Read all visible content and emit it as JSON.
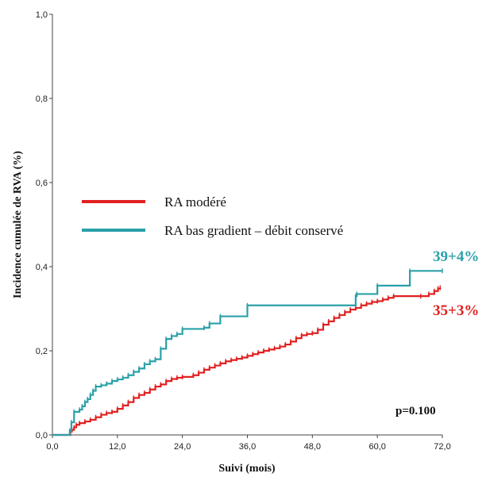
{
  "chart_data": {
    "type": "line",
    "title": "",
    "xlabel": "Suivi (mois)",
    "ylabel": "Incidence cumulée de RVA (%)",
    "xlim": [
      0,
      72
    ],
    "ylim": [
      0,
      1
    ],
    "x_ticks": [
      "0,0",
      "12,0",
      "24,0",
      "36,0",
      "48,0",
      "60,0",
      "72,0"
    ],
    "y_ticks": [
      "0,0",
      "0,2",
      "0,4",
      "0,6",
      "0,8",
      "1,0"
    ],
    "x_tick_values": [
      0,
      12,
      24,
      36,
      48,
      60,
      72
    ],
    "y_tick_values": [
      0,
      0.2,
      0.4,
      0.6,
      0.8,
      1.0
    ],
    "grid": false,
    "step": true,
    "legend_position": "center-left",
    "series": [
      {
        "name": "RA modéré",
        "color": "#e02020",
        "end_label": "35+3%",
        "points": [
          [
            0,
            0
          ],
          [
            3.2,
            0
          ],
          [
            3.3,
            0.008
          ],
          [
            3.6,
            0.012
          ],
          [
            4.0,
            0.018
          ],
          [
            4.4,
            0.024
          ],
          [
            5.0,
            0.028
          ],
          [
            6.0,
            0.032
          ],
          [
            7.0,
            0.036
          ],
          [
            8.0,
            0.042
          ],
          [
            9.0,
            0.048
          ],
          [
            10.0,
            0.052
          ],
          [
            11.0,
            0.055
          ],
          [
            12.0,
            0.062
          ],
          [
            13.0,
            0.07
          ],
          [
            14.0,
            0.078
          ],
          [
            15.0,
            0.088
          ],
          [
            16.0,
            0.095
          ],
          [
            17.0,
            0.1
          ],
          [
            18.0,
            0.108
          ],
          [
            19.0,
            0.115
          ],
          [
            20.0,
            0.12
          ],
          [
            21.0,
            0.128
          ],
          [
            22.0,
            0.133
          ],
          [
            23.0,
            0.136
          ],
          [
            24.0,
            0.138
          ],
          [
            26.0,
            0.142
          ],
          [
            27.0,
            0.148
          ],
          [
            28.0,
            0.155
          ],
          [
            29.0,
            0.16
          ],
          [
            30.0,
            0.165
          ],
          [
            31.0,
            0.17
          ],
          [
            32.0,
            0.175
          ],
          [
            33.0,
            0.178
          ],
          [
            34.0,
            0.181
          ],
          [
            35.0,
            0.184
          ],
          [
            36.0,
            0.188
          ],
          [
            37.0,
            0.192
          ],
          [
            38.0,
            0.196
          ],
          [
            39.0,
            0.2
          ],
          [
            40.0,
            0.203
          ],
          [
            41.0,
            0.206
          ],
          [
            42.0,
            0.21
          ],
          [
            43.0,
            0.215
          ],
          [
            44.0,
            0.222
          ],
          [
            45.0,
            0.23
          ],
          [
            46.0,
            0.237
          ],
          [
            47.0,
            0.24
          ],
          [
            48.0,
            0.242
          ],
          [
            49.0,
            0.25
          ],
          [
            50.0,
            0.262
          ],
          [
            51.0,
            0.27
          ],
          [
            52.0,
            0.278
          ],
          [
            53.0,
            0.285
          ],
          [
            54.0,
            0.292
          ],
          [
            55.0,
            0.298
          ],
          [
            56.0,
            0.302
          ],
          [
            57.0,
            0.308
          ],
          [
            58.0,
            0.312
          ],
          [
            59.0,
            0.316
          ],
          [
            60.0,
            0.318
          ],
          [
            61.0,
            0.322
          ],
          [
            62.0,
            0.326
          ],
          [
            63.0,
            0.33
          ],
          [
            68.0,
            0.33
          ],
          [
            69.5,
            0.335
          ],
          [
            70.5,
            0.342
          ],
          [
            71.2,
            0.348
          ],
          [
            71.6,
            0.35
          ]
        ]
      },
      {
        "name": "RA bas gradient – débit conservé",
        "color": "#2aa0a8",
        "end_label": "39+4%",
        "points": [
          [
            0,
            0
          ],
          [
            3.1,
            0
          ],
          [
            3.2,
            0.01
          ],
          [
            3.5,
            0.03
          ],
          [
            4.0,
            0.055
          ],
          [
            5.0,
            0.06
          ],
          [
            5.5,
            0.068
          ],
          [
            6.0,
            0.078
          ],
          [
            6.5,
            0.085
          ],
          [
            7.0,
            0.095
          ],
          [
            7.5,
            0.105
          ],
          [
            8.0,
            0.115
          ],
          [
            9.0,
            0.118
          ],
          [
            10.0,
            0.122
          ],
          [
            11.0,
            0.128
          ],
          [
            12.0,
            0.132
          ],
          [
            13.0,
            0.136
          ],
          [
            14.0,
            0.142
          ],
          [
            15.0,
            0.15
          ],
          [
            16.0,
            0.158
          ],
          [
            17.0,
            0.168
          ],
          [
            18.0,
            0.175
          ],
          [
            19.0,
            0.18
          ],
          [
            20.0,
            0.205
          ],
          [
            21.0,
            0.228
          ],
          [
            22.0,
            0.235
          ],
          [
            23.0,
            0.24
          ],
          [
            24.0,
            0.252
          ],
          [
            28.0,
            0.255
          ],
          [
            29.0,
            0.265
          ],
          [
            31.0,
            0.282
          ],
          [
            36.0,
            0.308
          ],
          [
            56.0,
            0.33
          ],
          [
            56.2,
            0.335
          ],
          [
            60.0,
            0.355
          ],
          [
            66.0,
            0.39
          ],
          [
            72.0,
            0.39
          ]
        ]
      }
    ],
    "annotations": [
      "p=0.100"
    ]
  },
  "colors": {
    "axis": "#444444",
    "background": "#ffffff"
  }
}
